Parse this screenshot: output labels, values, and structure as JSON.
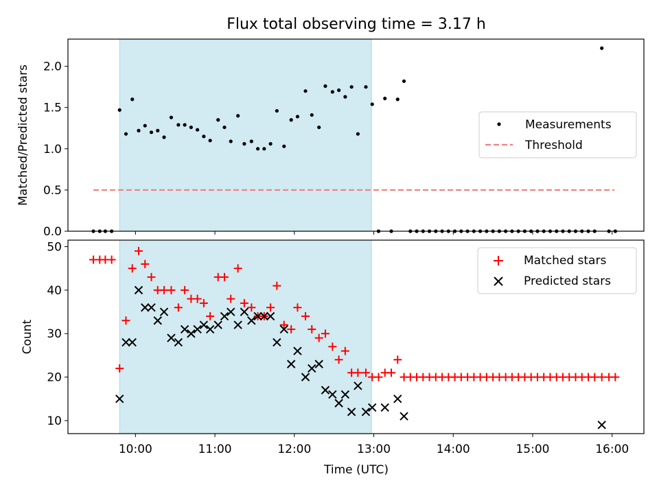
{
  "title": "Flux total observing time = 3.17 h",
  "colors": {
    "shade": "#add8e6",
    "threshold": "#f08080",
    "matched": "#ff0000",
    "predicted": "#000000",
    "measurement": "#000000"
  },
  "chart_data": [
    {
      "type": "scatter",
      "panel": "top",
      "ylabel": "Matched/Predicted stars",
      "xlabel": "",
      "xlim_hours": [
        9.15,
        16.4
      ],
      "ylim": [
        0,
        2.33
      ],
      "yticks": [
        0.0,
        0.5,
        1.0,
        1.5,
        2.0
      ],
      "ytick_labels": [
        "0.0",
        "0.5",
        "1.0",
        "1.5",
        "2.0"
      ],
      "shaded_span_hours": [
        9.8,
        12.97
      ],
      "legend": {
        "position": "center-right",
        "entries": [
          "Measurements",
          "Threshold"
        ]
      },
      "threshold": {
        "name": "Threshold",
        "value": 0.5,
        "x_range_hours": [
          9.47,
          16.03
        ]
      },
      "series": [
        {
          "name": "Measurements",
          "x": [
            9.47,
            9.55,
            9.62,
            9.7,
            9.8,
            9.88,
            9.96,
            10.04,
            10.12,
            10.2,
            10.28,
            10.36,
            10.45,
            10.54,
            10.62,
            10.7,
            10.78,
            10.86,
            10.94,
            11.04,
            11.12,
            11.2,
            11.29,
            11.37,
            11.46,
            11.54,
            11.62,
            11.7,
            11.78,
            11.87,
            11.96,
            12.04,
            12.14,
            12.22,
            12.31,
            12.39,
            12.48,
            12.56,
            12.64,
            12.72,
            12.8,
            12.9,
            12.98,
            13.06,
            13.14,
            13.22,
            13.3,
            13.38,
            13.46,
            13.54,
            13.62,
            13.7,
            13.78,
            13.86,
            13.94,
            14.02,
            14.1,
            14.18,
            14.26,
            14.34,
            14.42,
            14.5,
            14.58,
            14.66,
            14.74,
            14.82,
            14.9,
            14.98,
            15.06,
            15.14,
            15.22,
            15.3,
            15.38,
            15.46,
            15.54,
            15.62,
            15.7,
            15.78,
            15.87,
            15.96,
            16.04
          ],
          "y": [
            0,
            0,
            0,
            0,
            1.47,
            1.18,
            1.6,
            1.22,
            1.28,
            1.2,
            1.22,
            1.14,
            1.38,
            1.29,
            1.29,
            1.26,
            1.23,
            1.15,
            1.1,
            1.35,
            1.26,
            1.09,
            1.4,
            1.06,
            1.09,
            1.0,
            1.0,
            1.06,
            1.46,
            1.03,
            1.35,
            1.39,
            1.7,
            1.41,
            1.26,
            1.76,
            1.69,
            1.71,
            1.63,
            1.75,
            1.18,
            1.75,
            1.54,
            0,
            1.61,
            0,
            1.6,
            1.82,
            0,
            0,
            0,
            0,
            0,
            0,
            0,
            0,
            0,
            0,
            0,
            0,
            0,
            0,
            0,
            0,
            0,
            0,
            0,
            0,
            0,
            0,
            0,
            0,
            0,
            0,
            0,
            0,
            0,
            0,
            2.22,
            0,
            0
          ]
        }
      ]
    },
    {
      "type": "scatter",
      "panel": "bottom",
      "ylabel": "Count",
      "xlabel": "Time (UTC)",
      "xlim_hours": [
        9.15,
        16.4
      ],
      "ylim": [
        7,
        51.5
      ],
      "yticks": [
        10,
        20,
        30,
        40,
        50
      ],
      "ytick_labels": [
        "10",
        "20",
        "30",
        "40",
        "50"
      ],
      "xticks_hours": [
        10,
        11,
        12,
        13,
        14,
        15,
        16
      ],
      "xtick_labels": [
        "10:00",
        "11:00",
        "12:00",
        "13:00",
        "14:00",
        "15:00",
        "16:00"
      ],
      "shaded_span_hours": [
        9.8,
        12.97
      ],
      "legend": {
        "position": "top-right",
        "entries": [
          "Matched stars",
          "Predicted stars"
        ]
      },
      "series": [
        {
          "name": "Matched stars",
          "marker": "+",
          "x": [
            9.47,
            9.55,
            9.62,
            9.7,
            9.8,
            9.88,
            9.96,
            10.04,
            10.12,
            10.2,
            10.28,
            10.36,
            10.45,
            10.54,
            10.62,
            10.7,
            10.78,
            10.86,
            10.94,
            11.04,
            11.12,
            11.2,
            11.29,
            11.37,
            11.46,
            11.54,
            11.62,
            11.7,
            11.78,
            11.87,
            11.96,
            12.04,
            12.14,
            12.22,
            12.31,
            12.39,
            12.48,
            12.56,
            12.64,
            12.72,
            12.8,
            12.9,
            12.98,
            13.06,
            13.14,
            13.22,
            13.3,
            13.38,
            13.46,
            13.54,
            13.62,
            13.7,
            13.78,
            13.86,
            13.94,
            14.02,
            14.1,
            14.18,
            14.26,
            14.34,
            14.42,
            14.5,
            14.58,
            14.66,
            14.74,
            14.82,
            14.9,
            14.98,
            15.06,
            15.14,
            15.22,
            15.3,
            15.38,
            15.46,
            15.54,
            15.62,
            15.7,
            15.78,
            15.87,
            15.96,
            16.04
          ],
          "y": [
            47,
            47,
            47,
            47,
            22,
            33,
            45,
            49,
            46,
            43,
            40,
            40,
            40,
            36,
            40,
            38,
            38,
            37,
            34,
            43,
            43,
            38,
            45,
            37,
            36,
            34,
            34,
            36,
            41,
            32,
            31,
            36,
            34,
            31,
            29,
            30,
            27,
            24,
            26,
            21,
            21,
            21,
            20,
            20,
            21,
            21,
            24,
            20,
            20,
            20,
            20,
            20,
            20,
            20,
            20,
            20,
            20,
            20,
            20,
            20,
            20,
            20,
            20,
            20,
            20,
            20,
            20,
            20,
            20,
            20,
            20,
            20,
            20,
            20,
            20,
            20,
            20,
            20,
            20,
            20,
            20
          ]
        },
        {
          "name": "Predicted stars",
          "marker": "x",
          "x": [
            9.8,
            9.88,
            9.96,
            10.04,
            10.12,
            10.2,
            10.28,
            10.36,
            10.45,
            10.54,
            10.62,
            10.7,
            10.78,
            10.86,
            10.94,
            11.04,
            11.12,
            11.2,
            11.29,
            11.37,
            11.46,
            11.54,
            11.62,
            11.7,
            11.78,
            11.87,
            11.96,
            12.04,
            12.14,
            12.22,
            12.31,
            12.39,
            12.48,
            12.56,
            12.64,
            12.72,
            12.8,
            12.9,
            12.98,
            13.14,
            13.3,
            13.38,
            15.87
          ],
          "y": [
            15,
            28,
            28,
            40,
            36,
            36,
            33,
            35,
            29,
            28,
            31,
            30,
            31,
            32,
            31,
            32,
            34,
            35,
            32,
            35,
            33,
            34,
            34,
            34,
            28,
            31,
            23,
            26,
            20,
            22,
            23,
            17,
            16,
            14,
            16,
            12,
            18,
            12,
            13,
            13,
            15,
            11,
            9
          ]
        }
      ]
    }
  ]
}
